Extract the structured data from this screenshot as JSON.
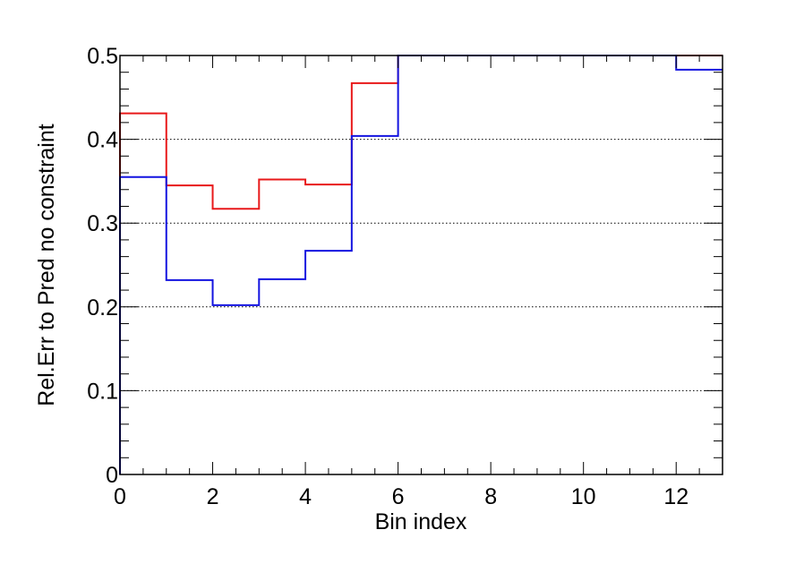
{
  "chart_data": {
    "type": "line",
    "style": "step-histogram",
    "title": "",
    "xlabel": "Bin index",
    "ylabel": "Rel.Err to Pred no constraint",
    "xlim": [
      0,
      13
    ],
    "ylim": [
      0,
      0.5
    ],
    "x_ticks": [
      "0",
      "2",
      "4",
      "6",
      "8",
      "10",
      "12"
    ],
    "y_ticks": [
      "0",
      "0.1",
      "0.2",
      "0.3",
      "0.4",
      "0.5"
    ],
    "grid": "horizontal dotted",
    "legend": "none",
    "bin_edges": [
      0,
      1,
      2,
      3,
      4,
      5,
      6,
      7,
      8,
      9,
      10,
      11,
      12,
      13
    ],
    "series": [
      {
        "color": "#e8191a",
        "values": [
          0.431,
          0.345,
          0.317,
          0.352,
          0.346,
          0.467,
          0.5,
          0.5,
          0.5,
          0.5,
          0.5,
          0.5,
          0.5
        ]
      },
      {
        "color": "#1414e0",
        "values": [
          0.355,
          0.232,
          0.202,
          0.233,
          0.267,
          0.404,
          0.5,
          0.5,
          0.5,
          0.5,
          0.5,
          0.5,
          0.483
        ]
      }
    ]
  }
}
